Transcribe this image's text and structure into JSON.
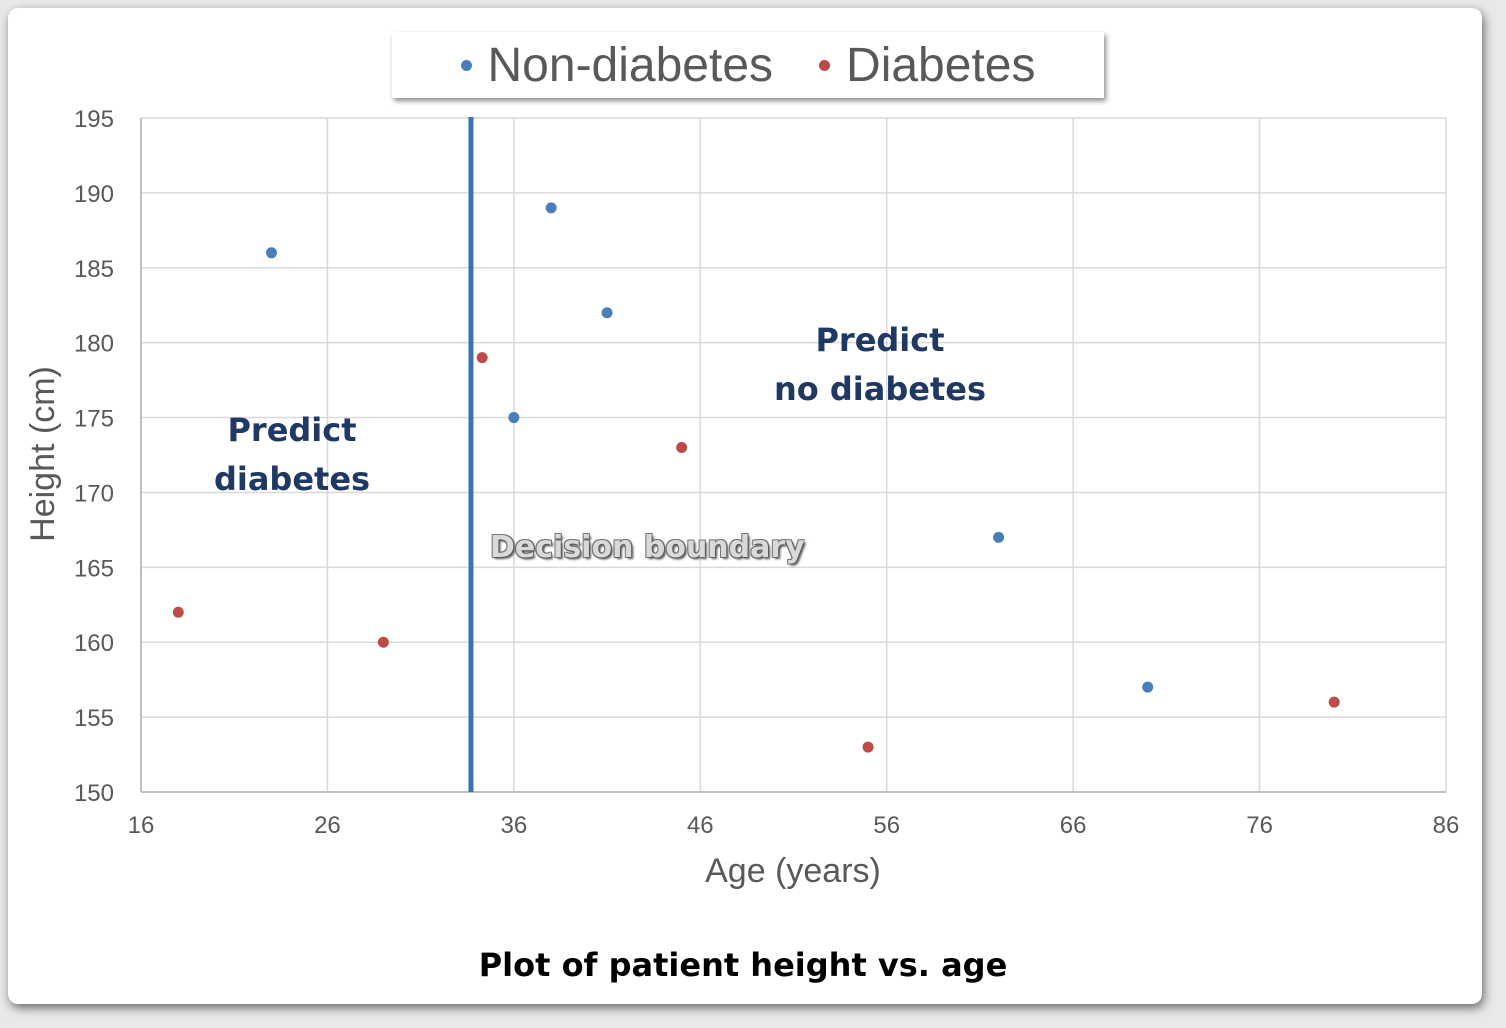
{
  "chart_data": {
    "type": "scatter",
    "caption": "Plot of patient height vs. age",
    "xlabel": "Age (years)",
    "ylabel": "Height (cm)",
    "xlim": [
      16,
      86
    ],
    "ylim": [
      150,
      195
    ],
    "xticks": [
      16,
      26,
      36,
      46,
      56,
      66,
      76,
      86
    ],
    "yticks": [
      150,
      155,
      160,
      165,
      170,
      175,
      180,
      185,
      190,
      195
    ],
    "grid": true,
    "legend_position": "top",
    "series": [
      {
        "name": "Non-diabetes",
        "color": "#4a7ebb",
        "points": [
          [
            23,
            186
          ],
          [
            38,
            189
          ],
          [
            41,
            182
          ],
          [
            36,
            175
          ],
          [
            62,
            167
          ],
          [
            70,
            157
          ]
        ]
      },
      {
        "name": "Diabetes",
        "color": "#be4b48",
        "points": [
          [
            18,
            162
          ],
          [
            29,
            160
          ],
          [
            34.3,
            179
          ],
          [
            45,
            173
          ],
          [
            55,
            153
          ],
          [
            80,
            156
          ]
        ]
      }
    ],
    "decision_boundary": {
      "x": 33.7,
      "color": "#3b72b5",
      "label": "Decision boundary"
    },
    "annotations": [
      {
        "text": [
          "Predict",
          "diabetes"
        ]
      },
      {
        "text": [
          "Predict",
          "no diabetes"
        ]
      }
    ]
  }
}
